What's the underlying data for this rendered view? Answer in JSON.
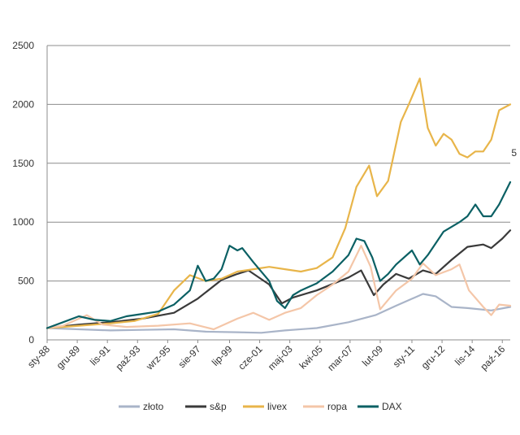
{
  "chart_data": {
    "type": "line",
    "title": "",
    "xlabel": "",
    "ylabel": "",
    "ylim": [
      0,
      2500
    ],
    "yticks": [
      0,
      500,
      1000,
      1500,
      2000,
      2500
    ],
    "xlim": [
      1988.0,
      2017.2
    ],
    "xtick_labels": [
      "sty-88",
      "gru-89",
      "lis-91",
      "paź-93",
      "wrz-95",
      "sie-97",
      "lip-99",
      "cze-01",
      "maj-03",
      "kwi-05",
      "mar-07",
      "lut-09",
      "sty-11",
      "gru-12",
      "lis-14",
      "paź-16"
    ],
    "xtick_values": [
      1988.0,
      1989.9,
      1991.8,
      1993.7,
      1995.6,
      1997.5,
      1999.5,
      2001.4,
      2003.3,
      2005.2,
      2007.1,
      2009.0,
      2011.0,
      2012.9,
      2014.8,
      2016.7
    ],
    "grid": "horizontal",
    "legend_position": "bottom",
    "extra_marks": [
      "5"
    ],
    "series": [
      {
        "name": "złoto",
        "color": "#a9b4c8",
        "x": [
          1988.0,
          1990,
          1992,
          1994,
          1996,
          1998,
          2000,
          2001.5,
          2003,
          2005,
          2007,
          2008.7,
          2010,
          2011.7,
          2012.5,
          2013.5,
          2014.5,
          2016,
          2017.2
        ],
        "y": [
          100,
          90,
          80,
          85,
          90,
          70,
          65,
          60,
          80,
          100,
          150,
          210,
          290,
          390,
          370,
          280,
          270,
          250,
          280
        ]
      },
      {
        "name": "s&p",
        "color": "#3a3a3a",
        "x": [
          1988.0,
          1990,
          1992,
          1994,
          1996,
          1997.5,
          1999,
          2000,
          2000.7,
          2002,
          2002.8,
          2003.5,
          2005,
          2007,
          2007.8,
          2008.6,
          2009.2,
          2010,
          2010.8,
          2011.7,
          2012.5,
          2013.5,
          2014.5,
          2015.5,
          2016,
          2016.7,
          2017.2
        ],
        "y": [
          100,
          130,
          150,
          180,
          230,
          350,
          510,
          560,
          590,
          470,
          310,
          360,
          420,
          530,
          590,
          380,
          470,
          560,
          520,
          590,
          560,
          680,
          790,
          810,
          780,
          860,
          930
        ]
      },
      {
        "name": "livex",
        "color": "#e8b54a",
        "x": [
          1988.0,
          1990,
          1992,
          1993.5,
          1995,
          1996,
          1997,
          1998,
          1999,
          2000,
          2001,
          2002,
          2003,
          2004,
          2005,
          2006,
          2006.8,
          2007.5,
          2008.3,
          2008.8,
          2009.5,
          2010.3,
          2010.8,
          2011.5,
          2012.0,
          2012.5,
          2013.0,
          2013.5,
          2014.0,
          2014.5,
          2015.0,
          2015.5,
          2016.0,
          2016.5,
          2017.2
        ],
        "y": [
          100,
          120,
          140,
          160,
          220,
          420,
          550,
          500,
          520,
          580,
          600,
          620,
          600,
          580,
          610,
          700,
          950,
          1300,
          1480,
          1220,
          1350,
          1850,
          2000,
          2220,
          1800,
          1650,
          1750,
          1700,
          1580,
          1550,
          1600,
          1600,
          1700,
          1950,
          2000
        ]
      },
      {
        "name": "ropa",
        "color": "#f4c6a8",
        "x": [
          1988.0,
          1989,
          1990.5,
          1991.5,
          1993,
          1995,
          1997,
          1998.5,
          2000,
          2001,
          2002,
          2003,
          2004,
          2005,
          2006,
          2007,
          2007.8,
          2008.4,
          2009,
          2010,
          2011,
          2011.7,
          2012.5,
          2013.5,
          2014,
          2014.6,
          2015.5,
          2016,
          2016.5,
          2017.2
        ],
        "y": [
          100,
          120,
          210,
          130,
          110,
          120,
          140,
          90,
          180,
          230,
          170,
          230,
          270,
          380,
          470,
          580,
          800,
          620,
          260,
          420,
          520,
          650,
          550,
          600,
          640,
          420,
          280,
          210,
          300,
          290
        ]
      },
      {
        "name": "DAX",
        "color": "#0b6064",
        "x": [
          1988.0,
          1989,
          1990,
          1991,
          1992,
          1993,
          1994,
          1995,
          1996,
          1997,
          1997.5,
          1998,
          1998.5,
          1999,
          1999.5,
          2000,
          2000.3,
          2001,
          2002,
          2002.5,
          2003,
          2003.5,
          2004,
          2005,
          2006,
          2007,
          2007.5,
          2008,
          2008.5,
          2009,
          2009.5,
          2010,
          2011,
          2011.5,
          2012,
          2013,
          2014,
          2014.5,
          2015,
          2015.5,
          2016,
          2016.5,
          2017.2
        ],
        "y": [
          100,
          150,
          200,
          170,
          160,
          200,
          220,
          240,
          300,
          420,
          630,
          500,
          520,
          600,
          800,
          760,
          780,
          660,
          500,
          330,
          270,
          380,
          420,
          480,
          580,
          720,
          860,
          840,
          700,
          500,
          560,
          640,
          760,
          640,
          720,
          920,
          1000,
          1050,
          1150,
          1050,
          1050,
          1150,
          1340
        ]
      }
    ]
  }
}
